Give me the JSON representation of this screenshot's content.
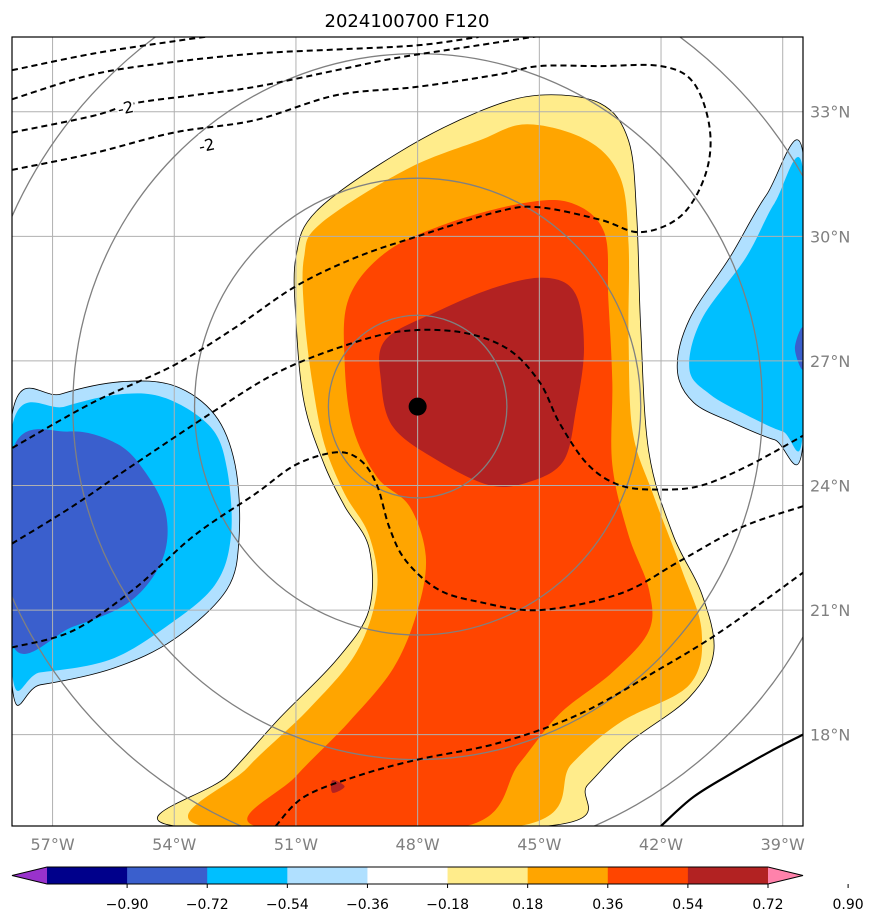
{
  "chart_data": {
    "type": "heatmap",
    "title": "2024100700 F120",
    "xlabel": "",
    "ylabel": "",
    "xlim": [
      -58,
      -38.5
    ],
    "ylim": [
      15.8,
      34.8
    ],
    "x_ticks": [
      -57,
      -54,
      -51,
      -48,
      -45,
      -42,
      -39
    ],
    "x_tick_labels": [
      "57°W",
      "54°W",
      "51°W",
      "48°W",
      "45°W",
      "42°W",
      "39°W"
    ],
    "y_ticks": [
      18,
      21,
      24,
      27,
      30,
      33
    ],
    "y_tick_labels": [
      "18°N",
      "21°N",
      "24°N",
      "27°N",
      "30°N",
      "33°N"
    ],
    "grid": true,
    "center_marker": {
      "lon": -48,
      "lat": 25.9
    },
    "range_rings_deg": [
      2.2,
      5.5,
      8.5,
      11
    ],
    "colorbar": {
      "levels": [
        -0.9,
        -0.72,
        -0.54,
        -0.36,
        -0.18,
        0.18,
        0.36,
        0.54,
        0.72,
        0.9
      ],
      "tick_labels": [
        "−0.90",
        "−0.72",
        "−0.54",
        "−0.36",
        "−0.18",
        "0.18",
        "0.36",
        "0.54",
        "0.72",
        "0.90"
      ],
      "colors": [
        "#9932cc",
        "#00008b",
        "#3a5fcd",
        "#00bfff",
        "#b0e0ff",
        "#ffffff",
        "#ffec8b",
        "#ffa500",
        "#ff4500",
        "#b22222",
        "#ff82ab"
      ],
      "extend": "both"
    },
    "contour_labels": [
      "-2",
      "-2"
    ],
    "filled_regions": [
      {
        "level": 0.18,
        "color": "#ffec8b",
        "points": [
          [
            -50.5,
            30.6
          ],
          [
            -48.5,
            32.0
          ],
          [
            -46.5,
            33.0
          ],
          [
            -45.0,
            33.4
          ],
          [
            -43.5,
            33.2
          ],
          [
            -42.8,
            32.3
          ],
          [
            -42.6,
            30.5
          ],
          [
            -42.5,
            27.8
          ],
          [
            -42.3,
            24.8
          ],
          [
            -41.7,
            22.8
          ],
          [
            -41.0,
            21.4
          ],
          [
            -40.7,
            20.0
          ],
          [
            -41.3,
            18.9
          ],
          [
            -42.8,
            17.8
          ],
          [
            -43.8,
            16.8
          ],
          [
            -44.8,
            15.8
          ],
          [
            -54.0,
            15.8
          ],
          [
            -52.7,
            17.0
          ],
          [
            -51.4,
            18.4
          ],
          [
            -50.0,
            19.8
          ],
          [
            -49.2,
            21.0
          ],
          [
            -49.2,
            22.5
          ],
          [
            -49.8,
            23.5
          ],
          [
            -50.3,
            24.5
          ],
          [
            -50.8,
            26.0
          ],
          [
            -51.0,
            28.0
          ],
          [
            -51.0,
            29.5
          ]
        ]
      },
      {
        "level": 0.36,
        "color": "#ffa500",
        "points": [
          [
            -50.4,
            30.3
          ],
          [
            -48.3,
            31.6
          ],
          [
            -46.5,
            32.3
          ],
          [
            -45.3,
            32.7
          ],
          [
            -43.8,
            32.3
          ],
          [
            -43.0,
            31.4
          ],
          [
            -42.8,
            29.8
          ],
          [
            -42.8,
            27.5
          ],
          [
            -42.7,
            25.3
          ],
          [
            -42.2,
            23.8
          ],
          [
            -41.5,
            22.0
          ],
          [
            -41.0,
            20.5
          ],
          [
            -41.3,
            19.2
          ],
          [
            -43.0,
            18.3
          ],
          [
            -44.2,
            17.3
          ],
          [
            -45.5,
            15.8
          ],
          [
            -53.3,
            15.8
          ],
          [
            -52.2,
            17.2
          ],
          [
            -50.7,
            18.6
          ],
          [
            -49.5,
            20.0
          ],
          [
            -49.0,
            21.5
          ],
          [
            -49.2,
            22.8
          ],
          [
            -49.8,
            23.8
          ],
          [
            -50.3,
            25.0
          ],
          [
            -50.6,
            26.5
          ],
          [
            -50.8,
            28.2
          ],
          [
            -50.8,
            29.5
          ]
        ]
      },
      {
        "level": 0.54,
        "color": "#ff4500",
        "points": [
          [
            -48.8,
            29.6
          ],
          [
            -47.3,
            30.3
          ],
          [
            -45.4,
            30.8
          ],
          [
            -44.2,
            30.8
          ],
          [
            -43.4,
            30.1
          ],
          [
            -43.3,
            28.5
          ],
          [
            -43.2,
            26.5
          ],
          [
            -43.2,
            24.5
          ],
          [
            -42.8,
            22.8
          ],
          [
            -42.3,
            21.5
          ],
          [
            -42.3,
            20.5
          ],
          [
            -43.2,
            19.5
          ],
          [
            -44.5,
            18.5
          ],
          [
            -45.5,
            17.3
          ],
          [
            -46.8,
            15.8
          ],
          [
            -52.0,
            15.8
          ],
          [
            -51.0,
            17.0
          ],
          [
            -49.7,
            18.3
          ],
          [
            -48.6,
            19.6
          ],
          [
            -48.0,
            21.0
          ],
          [
            -47.8,
            22.3
          ],
          [
            -48.2,
            23.5
          ],
          [
            -49.0,
            24.2
          ],
          [
            -49.6,
            25.4
          ],
          [
            -49.8,
            27.0
          ],
          [
            -49.7,
            28.5
          ]
        ]
      },
      {
        "level": 0.72,
        "color": "#b22222",
        "points": [
          [
            -47.5,
            28.2
          ],
          [
            -46.0,
            28.8
          ],
          [
            -44.8,
            29.0
          ],
          [
            -44.1,
            28.6
          ],
          [
            -43.9,
            27.3
          ],
          [
            -44.1,
            25.8
          ],
          [
            -44.4,
            24.6
          ],
          [
            -45.2,
            24.1
          ],
          [
            -46.2,
            24.0
          ],
          [
            -47.5,
            24.6
          ],
          [
            -48.6,
            25.4
          ],
          [
            -48.9,
            26.5
          ],
          [
            -48.8,
            27.5
          ]
        ]
      },
      {
        "level": 0.72,
        "color": "#b22222",
        "points": [
          [
            -50.1,
            16.9
          ],
          [
            -49.8,
            16.75
          ],
          [
            -50.1,
            16.6
          ]
        ]
      },
      {
        "level": -0.18,
        "color": "#b0e0ff",
        "points": [
          [
            -58.0,
            25.7
          ],
          [
            -56.8,
            26.2
          ],
          [
            -55.3,
            26.5
          ],
          [
            -54.0,
            26.4
          ],
          [
            -53.0,
            25.7
          ],
          [
            -52.5,
            24.5
          ],
          [
            -52.4,
            22.8
          ],
          [
            -52.7,
            21.5
          ],
          [
            -54.0,
            20.3
          ],
          [
            -55.5,
            19.6
          ],
          [
            -57.3,
            19.2
          ],
          [
            -58.0,
            19.2
          ]
        ]
      },
      {
        "level": -0.36,
        "color": "#00bfff",
        "points": [
          [
            -58.0,
            25.4
          ],
          [
            -56.7,
            25.9
          ],
          [
            -55.3,
            26.2
          ],
          [
            -54.2,
            26.1
          ],
          [
            -53.1,
            25.4
          ],
          [
            -52.7,
            24.4
          ],
          [
            -52.6,
            22.8
          ],
          [
            -53.0,
            21.6
          ],
          [
            -54.2,
            20.6
          ],
          [
            -55.6,
            19.8
          ],
          [
            -57.3,
            19.5
          ],
          [
            -58.0,
            19.5
          ]
        ]
      },
      {
        "level": -0.54,
        "color": "#3a5fcd",
        "points": [
          [
            -58.0,
            24.8
          ],
          [
            -56.6,
            25.3
          ],
          [
            -55.4,
            25.0
          ],
          [
            -54.7,
            24.3
          ],
          [
            -54.2,
            23.3
          ],
          [
            -54.3,
            22.2
          ],
          [
            -55.1,
            21.2
          ],
          [
            -56.5,
            20.6
          ],
          [
            -58.0,
            20.2
          ]
        ]
      },
      {
        "level": -0.18,
        "color": "#b0e0ff",
        "points": [
          [
            -38.5,
            32.0
          ],
          [
            -39.4,
            31.0
          ],
          [
            -40.3,
            29.5
          ],
          [
            -41.3,
            28.0
          ],
          [
            -41.6,
            26.8
          ],
          [
            -41.2,
            26.0
          ],
          [
            -40.2,
            25.5
          ],
          [
            -39.2,
            25.1
          ],
          [
            -38.5,
            25.0
          ]
        ]
      },
      {
        "level": -0.36,
        "color": "#00bfff",
        "points": [
          [
            -38.5,
            31.6
          ],
          [
            -39.2,
            30.8
          ],
          [
            -39.9,
            29.5
          ],
          [
            -41.0,
            28.0
          ],
          [
            -41.3,
            26.8
          ],
          [
            -40.8,
            26.2
          ],
          [
            -39.9,
            25.7
          ],
          [
            -39.0,
            25.3
          ],
          [
            -38.5,
            25.3
          ]
        ]
      },
      {
        "level": -0.54,
        "color": "#3a5fcd",
        "points": [
          [
            -38.5,
            27.8
          ],
          [
            -38.7,
            27.3
          ],
          [
            -38.5,
            26.8
          ]
        ]
      }
    ],
    "dashed_contours": [
      [
        [
          -58.0,
          34.0
        ],
        [
          -56.0,
          34.4
        ],
        [
          -54.0,
          34.7
        ],
        [
          -52.5,
          34.9
        ]
      ],
      [
        [
          -58.0,
          33.3
        ],
        [
          -56.0,
          33.9
        ],
        [
          -54.0,
          34.2
        ],
        [
          -52.0,
          34.4
        ],
        [
          -50.0,
          34.5
        ],
        [
          -48.0,
          34.6
        ],
        [
          -46.5,
          34.8
        ]
      ],
      [
        [
          -58.0,
          32.5
        ],
        [
          -56.0,
          32.9
        ],
        [
          -55.0,
          33.2
        ],
        [
          -53.5,
          33.4
        ],
        [
          -52.0,
          33.6
        ],
        [
          -50.0,
          34.0
        ],
        [
          -48.5,
          34.3
        ],
        [
          -46.5,
          34.6
        ],
        [
          -44.5,
          34.9
        ]
      ],
      [
        [
          -58.0,
          31.6
        ],
        [
          -56.0,
          32.0
        ],
        [
          -54.0,
          32.5
        ],
        [
          -52.0,
          32.8
        ],
        [
          -50.0,
          33.4
        ],
        [
          -48.0,
          33.6
        ],
        [
          -46.0,
          33.9
        ],
        [
          -45.0,
          34.1
        ],
        [
          -43.5,
          34.1
        ],
        [
          -42.0,
          34.1
        ],
        [
          -41.2,
          33.7
        ],
        [
          -40.8,
          32.6
        ],
        [
          -40.9,
          31.5
        ],
        [
          -41.5,
          30.5
        ],
        [
          -42.5,
          30.1
        ],
        [
          -43.5,
          30.4
        ],
        [
          -45.0,
          30.7
        ],
        [
          -46.0,
          30.6
        ],
        [
          -48.0,
          30.0
        ],
        [
          -49.5,
          29.5
        ],
        [
          -51.0,
          28.8
        ],
        [
          -52.5,
          27.8
        ],
        [
          -54.0,
          26.9
        ],
        [
          -56.0,
          26.0
        ],
        [
          -58.0,
          24.9
        ]
      ],
      [
        [
          -58.0,
          22.6
        ],
        [
          -56.5,
          23.5
        ],
        [
          -55.0,
          24.5
        ],
        [
          -53.0,
          25.8
        ],
        [
          -51.5,
          26.7
        ],
        [
          -50.0,
          27.3
        ],
        [
          -48.5,
          27.7
        ],
        [
          -47.0,
          27.7
        ],
        [
          -45.8,
          27.3
        ],
        [
          -45.0,
          26.5
        ],
        [
          -44.5,
          25.5
        ],
        [
          -43.8,
          24.5
        ],
        [
          -43.0,
          24.0
        ],
        [
          -42.0,
          23.9
        ],
        [
          -41.0,
          24.0
        ],
        [
          -39.8,
          24.5
        ],
        [
          -38.5,
          25.2
        ]
      ],
      [
        [
          -58.0,
          20.1
        ],
        [
          -56.5,
          20.5
        ],
        [
          -55.0,
          21.5
        ],
        [
          -53.5,
          22.8
        ],
        [
          -52.0,
          23.8
        ],
        [
          -51.0,
          24.5
        ],
        [
          -50.0,
          24.8
        ],
        [
          -49.4,
          24.6
        ],
        [
          -49.0,
          24.0
        ],
        [
          -48.7,
          23.0
        ],
        [
          -48.3,
          22.2
        ],
        [
          -47.5,
          21.5
        ],
        [
          -46.5,
          21.2
        ],
        [
          -45.0,
          21.0
        ],
        [
          -43.0,
          21.4
        ],
        [
          -41.5,
          22.2
        ],
        [
          -40.0,
          23.0
        ],
        [
          -38.5,
          23.5
        ]
      ],
      [
        [
          -51.5,
          15.8
        ],
        [
          -50.8,
          16.5
        ],
        [
          -49.5,
          17.0
        ],
        [
          -48.0,
          17.4
        ],
        [
          -46.0,
          17.8
        ],
        [
          -44.0,
          18.5
        ],
        [
          -42.0,
          19.6
        ],
        [
          -40.5,
          20.5
        ],
        [
          -38.5,
          21.9
        ]
      ]
    ],
    "solid_contour": [
      [
        -42.0,
        15.8
      ],
      [
        -41.2,
        16.5
      ],
      [
        -40.2,
        17.1
      ],
      [
        -39.3,
        17.6
      ],
      [
        -38.5,
        18.0
      ]
    ]
  }
}
